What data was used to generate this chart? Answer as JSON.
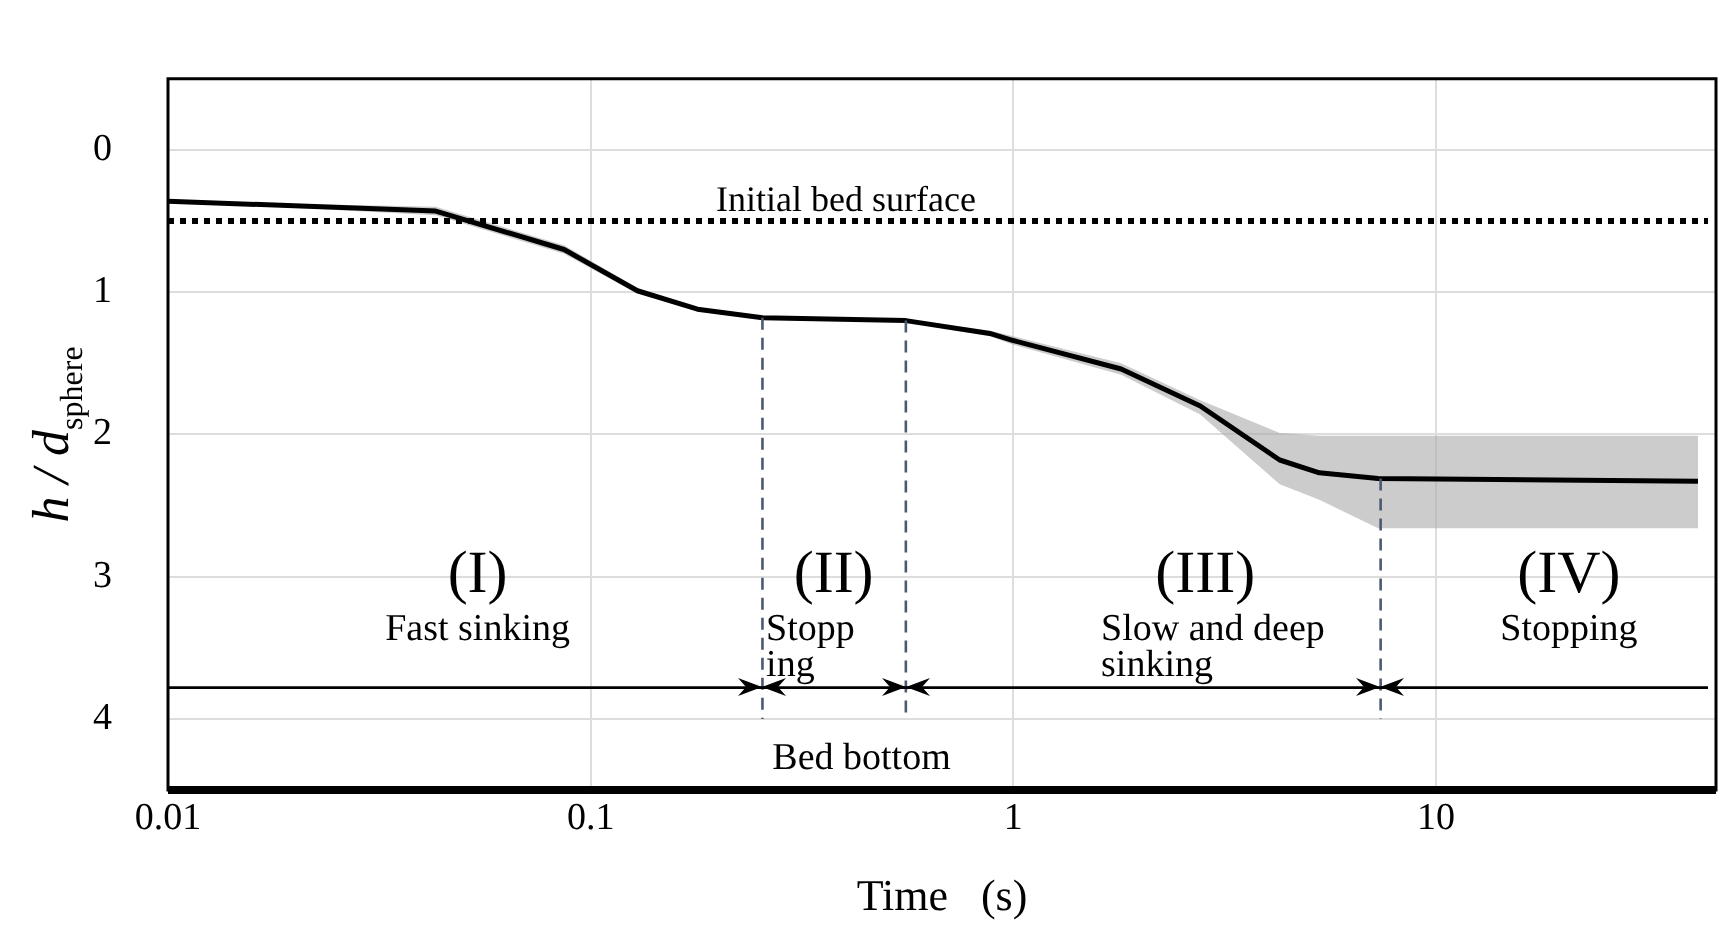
{
  "chart_data": {
    "type": "line",
    "xlabel": "Time   (s)",
    "ylabel": "h / d$_{sphere}$",
    "log": "x",
    "xlim": [
      0.01,
      46
    ],
    "xticks": [
      0.01,
      0.1,
      1,
      10
    ],
    "ylim": [
      4.5,
      -0.5
    ],
    "yticks": [
      0,
      1,
      2,
      3,
      4
    ],
    "grid": true,
    "legend": false,
    "marker": "none",
    "line_style": "solid",
    "series": [
      {
        "color": "#000000",
        "x": [
          0.01,
          0.043,
          0.0865,
          0.129,
          0.179,
          0.255,
          0.557,
          0.88,
          1.0,
          1.8,
          2.77,
          4.27,
          5.3,
          7.3,
          41.7
        ],
        "values": [
          0.36,
          0.43,
          0.7,
          0.99,
          1.12,
          1.18,
          1.2,
          1.29,
          1.34,
          1.54,
          1.8,
          2.18,
          2.27,
          2.31,
          2.33
        ],
        "lower": [
          0.36,
          0.4,
          0.67,
          0.97,
          1.11,
          1.17,
          1.19,
          1.27,
          1.31,
          1.5,
          1.76,
          1.99,
          2.01,
          2.01,
          2.01
        ],
        "upper": [
          0.36,
          0.46,
          0.73,
          1.01,
          1.13,
          1.19,
          1.21,
          1.31,
          1.37,
          1.58,
          1.86,
          2.35,
          2.46,
          2.66,
          2.66
        ]
      }
    ],
    "ref_lines": [
      {
        "axis": "y",
        "value": 0.5,
        "label": "Initial bed surface",
        "line_style": "dotted",
        "color": "#000000"
      },
      {
        "axis": "x",
        "value": 0.255,
        "line_style": "dashed",
        "color": "#4a5a70"
      },
      {
        "axis": "x",
        "value": 0.557,
        "line_style": "dashed",
        "color": "#4a5a70"
      },
      {
        "axis": "x",
        "value": 7.4,
        "line_style": "dashed",
        "color": "#4a5a70"
      },
      {
        "axis": "y",
        "value": 3.78,
        "line_style": "solid",
        "color": "#000000"
      }
    ],
    "annotations": [
      "(I)",
      "Fast sinking",
      "(II)",
      "Stopp\ning",
      "(III)",
      "Slow and deep\nsinking",
      "(IV)",
      "Stopping",
      "Bed bottom"
    ]
  }
}
